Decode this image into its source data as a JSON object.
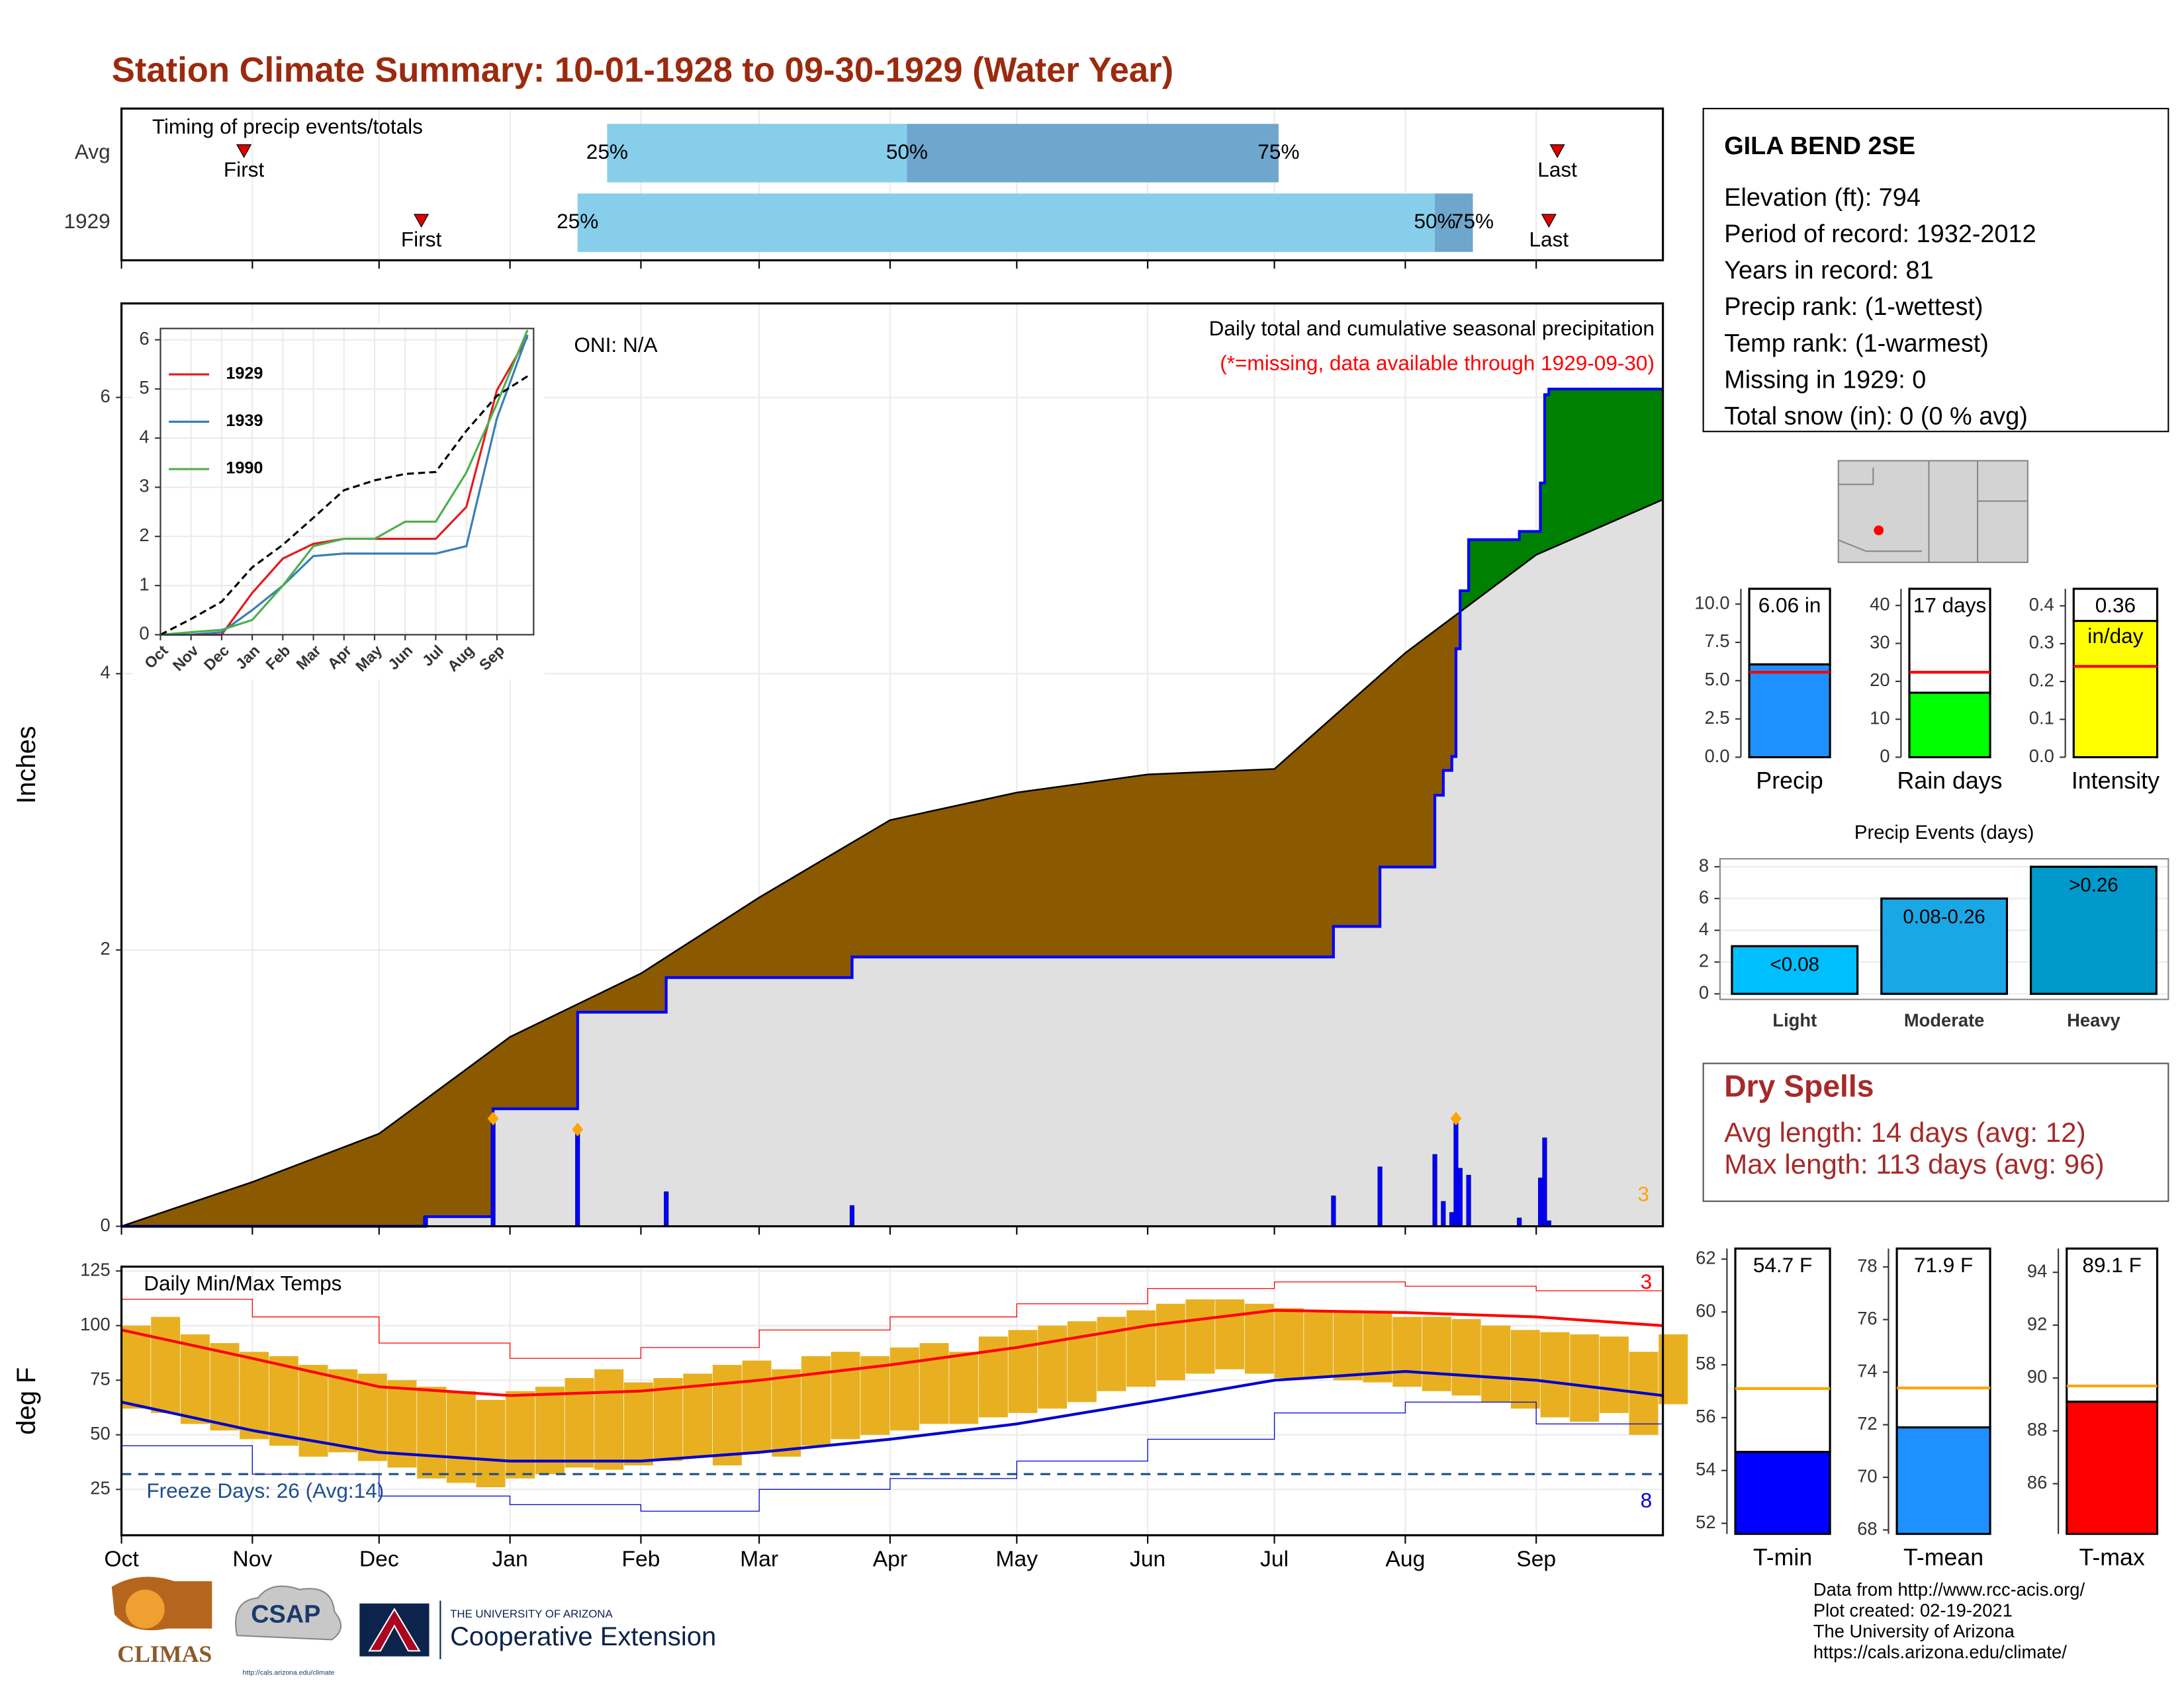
{
  "title": "Station Climate Summary: 10-01-1928 to 09-30-1929 (Water Year)",
  "station": {
    "name": "GILA BEND 2SE",
    "lines": [
      "Elevation (ft): 794",
      "Period of record: 1932-2012",
      "Years in record: 81",
      "Precip rank:  (1-wettest)",
      "Temp rank:  (1-warmest)",
      "Missing in 1929: 0",
      "Total snow (in): 0 (0 % avg)"
    ]
  },
  "dry_spells": {
    "title": "Dry Spells",
    "lines": [
      "Avg length: 14 days (avg: 12)",
      "Max length: 113 days (avg: 96)"
    ]
  },
  "footer": [
    "Data from http://www.rcc-acis.org/",
    "Plot created: 02-19-2021",
    "The University of Arizona",
    "https://cals.arizona.edu/climate/"
  ],
  "logos": [
    "CLIMAS",
    "CSAP",
    "http://cals.arizona.edu/climate",
    "THE UNIVERSITY OF ARIZONA",
    "Cooperative Extension"
  ],
  "chart_data": [
    {
      "type": "timing",
      "title": "Timing of precip events/totals",
      "categories": [
        "Avg",
        "1929"
      ],
      "xlim": [
        0,
        365
      ],
      "xticks": [
        0,
        31,
        61,
        92,
        123,
        151,
        182,
        212,
        243,
        273,
        304,
        335
      ],
      "marker_labels": [
        "First",
        "Last"
      ],
      "percent_labels": [
        "25%",
        "50%",
        "75%"
      ],
      "series": [
        {
          "first": 29,
          "p25": 115,
          "p50": 186,
          "p75": 274,
          "last": 340
        },
        {
          "first": 71,
          "p25": 108,
          "p50": 311,
          "p75": 320,
          "last": 338
        }
      ],
      "colors": [
        "#87ceeb",
        "#6ea6cd"
      ],
      "marker_color": "#e00000"
    },
    {
      "type": "precip",
      "title": "Daily total and cumulative seasonal precipitation",
      "subtitle": "(*=missing, data available through 1929-09-30)",
      "annotation": "ONI: N/A",
      "ylabel": "Inches",
      "xlim": [
        0,
        365
      ],
      "ylim": [
        0,
        6.68
      ],
      "yticks": [
        0,
        2,
        4,
        6
      ],
      "xticks": [
        0,
        31,
        61,
        92,
        123,
        151,
        182,
        212,
        243,
        273,
        304,
        335
      ],
      "grid": true,
      "events": {
        "x": [
          72,
          88,
          108,
          129,
          173,
          287,
          298,
          311,
          313,
          315,
          316,
          317,
          319,
          331,
          336,
          337,
          338
        ],
        "values": [
          0.07,
          0.78,
          0.7,
          0.25,
          0.15,
          0.22,
          0.43,
          0.52,
          0.18,
          0.1,
          0.78,
          0.42,
          0.37,
          0.06,
          0.35,
          0.64,
          0.04
        ],
        "color": "#0000ff"
      },
      "cumulative_avg": {
        "x": [
          0,
          31,
          61,
          92,
          123,
          151,
          182,
          212,
          243,
          273,
          304,
          335,
          365
        ],
        "values": [
          0,
          0.32,
          0.67,
          1.37,
          1.83,
          2.38,
          2.94,
          3.14,
          3.27,
          3.31,
          4.15,
          4.86,
          5.26
        ]
      },
      "top_events_count": 3,
      "colors": {
        "above": "#008000",
        "below": "#8b5a00",
        "base": "#e0e0e0",
        "highlight": "#ffa500"
      }
    },
    {
      "type": "line",
      "xlim": [
        0,
        12.2
      ],
      "ylim": [
        0,
        6.23
      ],
      "yticks": [
        0,
        1,
        2,
        3,
        4,
        5,
        6
      ],
      "xticks": [
        {
          "value": 0,
          "label": "Oct"
        },
        {
          "value": 1,
          "label": "Nov"
        },
        {
          "value": 2,
          "label": "Dec"
        },
        {
          "value": 3,
          "label": "Jan"
        },
        {
          "value": 4,
          "label": "Feb"
        },
        {
          "value": 5,
          "label": "Mar"
        },
        {
          "value": 6,
          "label": "Apr"
        },
        {
          "value": 7,
          "label": "May"
        },
        {
          "value": 8,
          "label": "Jun"
        },
        {
          "value": 9,
          "label": "Jul"
        },
        {
          "value": 10,
          "label": "Aug"
        },
        {
          "value": 11,
          "label": "Sep"
        }
      ],
      "x": [
        0,
        1,
        2,
        3,
        4,
        5,
        6,
        7,
        8,
        9,
        10,
        11,
        12
      ],
      "series": [
        {
          "name": "1929",
          "color": "#e41a1c",
          "values": [
            0,
            0,
            0,
            0.85,
            1.55,
            1.85,
            1.95,
            1.95,
            1.95,
            1.95,
            2.6,
            4.97,
            6.06
          ]
        },
        {
          "name": "1939",
          "color": "#377eb8",
          "values": [
            0,
            0,
            0.05,
            0.5,
            1.0,
            1.6,
            1.65,
            1.65,
            1.65,
            1.65,
            1.8,
            4.4,
            6.1
          ]
        },
        {
          "name": "1990",
          "color": "#4daf4a",
          "values": [
            0,
            0.05,
            0.1,
            0.3,
            1.0,
            1.8,
            1.95,
            1.95,
            2.3,
            2.3,
            3.3,
            4.7,
            6.2
          ]
        }
      ],
      "average": {
        "color": "#000000",
        "values": [
          0,
          0.32,
          0.67,
          1.37,
          1.83,
          2.38,
          2.94,
          3.14,
          3.27,
          3.31,
          4.15,
          4.86,
          5.26
        ]
      }
    },
    {
      "type": "temperature",
      "title": "Daily Min/Max Temps",
      "ylabel": "deg F",
      "xlim": [
        0,
        365
      ],
      "ylim": [
        4,
        127
      ],
      "yticks": [
        25,
        50,
        75,
        100,
        125
      ],
      "xticks": [
        {
          "value": 0,
          "label": "Oct"
        },
        {
          "value": 31,
          "label": "Nov"
        },
        {
          "value": 61,
          "label": "Dec"
        },
        {
          "value": 92,
          "label": "Jan"
        },
        {
          "value": 123,
          "label": "Feb"
        },
        {
          "value": 151,
          "label": "Mar"
        },
        {
          "value": 182,
          "label": "Apr"
        },
        {
          "value": 212,
          "label": "May"
        },
        {
          "value": 243,
          "label": "Jun"
        },
        {
          "value": 273,
          "label": "Jul"
        },
        {
          "value": 304,
          "label": "Aug"
        },
        {
          "value": 335,
          "label": "Sep"
        }
      ],
      "grid": true,
      "x": [
        0,
        7,
        14,
        21,
        28,
        35,
        42,
        49,
        56,
        63,
        70,
        77,
        84,
        91,
        98,
        105,
        112,
        119,
        126,
        133,
        140,
        147,
        154,
        161,
        168,
        175,
        182,
        189,
        196,
        203,
        210,
        217,
        224,
        231,
        238,
        245,
        252,
        259,
        266,
        273,
        280,
        287,
        294,
        301,
        308,
        315,
        322,
        329,
        336,
        343,
        350,
        357,
        364
      ],
      "max": [
        100,
        104,
        96,
        92,
        88,
        86,
        82,
        80,
        78,
        75,
        72,
        70,
        66,
        70,
        72,
        76,
        80,
        74,
        76,
        78,
        82,
        84,
        80,
        86,
        88,
        86,
        90,
        92,
        88,
        95,
        98,
        100,
        102,
        104,
        107,
        110,
        112,
        112,
        110,
        108,
        106,
        107,
        106,
        104,
        104,
        103,
        100,
        98,
        97,
        96,
        95,
        88,
        96
      ],
      "min": [
        62,
        60,
        55,
        52,
        48,
        45,
        40,
        42,
        38,
        35,
        30,
        28,
        26,
        30,
        32,
        35,
        34,
        36,
        38,
        40,
        36,
        42,
        40,
        45,
        48,
        50,
        52,
        55,
        55,
        58,
        60,
        62,
        65,
        70,
        72,
        75,
        78,
        80,
        78,
        76,
        76,
        75,
        74,
        72,
        70,
        68,
        65,
        62,
        58,
        56,
        60,
        50,
        64
      ],
      "avg_x": [
        0,
        31,
        61,
        92,
        123,
        151,
        182,
        212,
        243,
        273,
        304,
        335,
        365
      ],
      "avg_max": [
        98,
        85,
        72,
        68,
        70,
        75,
        82,
        90,
        100,
        107,
        106,
        104,
        100
      ],
      "avg_min": [
        65,
        52,
        42,
        38,
        38,
        42,
        48,
        55,
        65,
        75,
        79,
        75,
        68
      ],
      "record_high": [
        112,
        104,
        92,
        85,
        90,
        98,
        104,
        110,
        117,
        120,
        118,
        116,
        112
      ],
      "record_low": [
        45,
        32,
        22,
        18,
        15,
        25,
        30,
        38,
        48,
        60,
        65,
        55,
        45
      ],
      "freeze": {
        "value": 32,
        "label": "Freeze Days: 26 (Avg:14)"
      },
      "record_high_count": 3,
      "record_low_count": 8,
      "colors": {
        "bars": "#e8b020",
        "max": "#ff0000",
        "min": "#0000cd",
        "freeze": "#1f4e8c"
      }
    },
    {
      "type": "summary_bar",
      "category": "Precip",
      "value": 6.06,
      "value_label": "6.06 in",
      "average": 5.55,
      "ylim": [
        0,
        11
      ],
      "yticks": [
        {
          "value": 0,
          "label": "0.0"
        },
        {
          "value": 2.5,
          "label": "2.5"
        },
        {
          "value": 5,
          "label": "5.0"
        },
        {
          "value": 7.5,
          "label": "7.5"
        },
        {
          "value": 10,
          "label": "10.0"
        }
      ],
      "color": "#1e90ff",
      "average_color": "#ff0000"
    },
    {
      "type": "summary_bar",
      "category": "Rain days",
      "value": 17,
      "value_label": "17 days",
      "average": 22.4,
      "ylim": [
        0,
        44.4
      ],
      "yticks": [
        0,
        10,
        20,
        30,
        40
      ],
      "color": "#00ff00",
      "average_color": "#ff0000"
    },
    {
      "type": "summary_bar",
      "category": "Intensity",
      "value": 0.36,
      "value_label": "0.36",
      "unit": "in/day",
      "average": 0.24,
      "ylim": [
        0,
        0.445
      ],
      "yticks": [
        {
          "value": 0,
          "label": "0.0"
        },
        {
          "value": 0.1,
          "label": "0.1"
        },
        {
          "value": 0.2,
          "label": "0.2"
        },
        {
          "value": 0.3,
          "label": "0.3"
        },
        {
          "value": 0.4,
          "label": "0.4"
        }
      ],
      "color": "#ffff00",
      "average_color": "#ff0000"
    },
    {
      "type": "bar",
      "title": "Precip Events (days)",
      "categories": [
        "Light",
        "Moderate",
        "Heavy"
      ],
      "values": [
        3,
        6,
        8
      ],
      "bin_labels": [
        "<0.08",
        "0.08-0.26",
        ">0.26"
      ],
      "colors": [
        "#00bfff",
        "#1aa7e6",
        "#0099cc"
      ],
      "ylim": [
        -0.35,
        8.5
      ],
      "yticks": [
        0,
        2,
        4,
        6,
        8
      ],
      "grid": true
    },
    {
      "type": "summary_bar",
      "category": "T-min",
      "value": 54.7,
      "value_label": "54.7 F",
      "average": 57.1,
      "ylim": [
        51.6,
        62.4
      ],
      "yticks": [
        52,
        54,
        56,
        58,
        60,
        62
      ],
      "color": "#0000ff",
      "average_color": "#ffa500"
    },
    {
      "type": "summary_bar",
      "category": "T-mean",
      "value": 71.9,
      "value_label": "71.9 F",
      "average": 73.4,
      "ylim": [
        67.85,
        78.7
      ],
      "yticks": [
        68,
        70,
        72,
        74,
        76,
        78
      ],
      "color": "#1e90ff",
      "average_color": "#ffa500"
    },
    {
      "type": "summary_bar",
      "category": "T-max",
      "value": 89.1,
      "value_label": "89.1 F",
      "average": 89.7,
      "ylim": [
        84.1,
        94.9
      ],
      "yticks": [
        86,
        88,
        90,
        92,
        94
      ],
      "color": "#ff0000",
      "average_color": "#ffa500"
    }
  ]
}
